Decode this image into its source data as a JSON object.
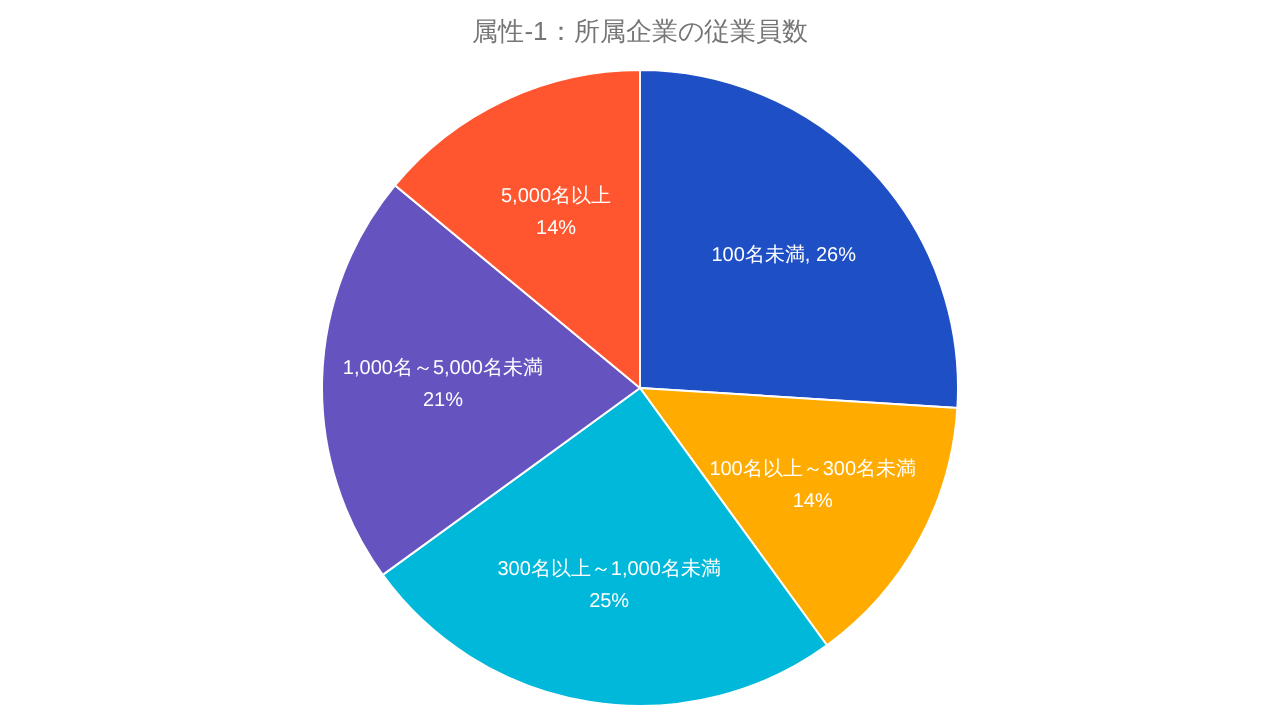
{
  "chart_data": {
    "type": "pie",
    "title": "属性-1：所属企業の従業員数",
    "categories": [
      "100名未満",
      "100名以上～300名未満",
      "300名以上～1,000名未満",
      "1,000名～5,000名未満",
      "5,000名以上"
    ],
    "values": [
      26,
      14,
      25,
      21,
      14
    ],
    "colors": [
      "#1f4fc4",
      "#ffab00",
      "#00b8d9",
      "#6554c0",
      "#ff5630"
    ],
    "value_labels": [
      "26%",
      "14%",
      "25%",
      "21%",
      "14%"
    ]
  }
}
